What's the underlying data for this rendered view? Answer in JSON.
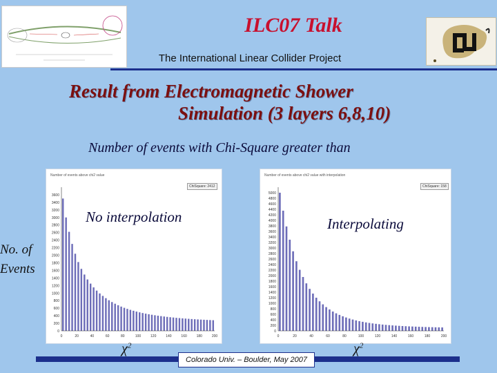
{
  "header": {
    "title": "ILC07 Talk",
    "subtitle": "The International Linear Collider Project"
  },
  "heading": {
    "line1": "Result from Electromagnetic Shower",
    "line2": "Simulation  (3 layers 6,8,10)"
  },
  "caption": "Number of events with Chi-Square greater than",
  "y_axis_label": [
    "No. of",
    "Events"
  ],
  "footer": "Colorado Univ. – Boulder, May  2007",
  "colors": {
    "background": "#9fc6ec",
    "title": "#c8102e",
    "heading": "#7b1010",
    "rule": "#1c2f8c",
    "bars": "#6d6db8"
  },
  "chart_data": [
    {
      "type": "bar",
      "panel_title": "Number of events above chi2 value",
      "stat": "ChiSquare: 2412",
      "annotation": "No interpolation",
      "xlabel_symbol": "χ",
      "xlabel_sup": "2",
      "xlim": [
        0,
        200
      ],
      "ylim": [
        0,
        3800
      ],
      "x_ticks": [
        "0",
        "20",
        "40",
        "60",
        "80",
        "100",
        "120",
        "140",
        "160",
        "180",
        "200"
      ],
      "y_ticks": [
        "0",
        "200",
        "400",
        "600",
        "800",
        "1000",
        "1200",
        "1400",
        "1600",
        "1800",
        "2000",
        "2200",
        "2400",
        "2600",
        "2800",
        "3000",
        "3200",
        "3400",
        "3600"
      ],
      "x": [
        2,
        6,
        10,
        14,
        18,
        22,
        26,
        30,
        34,
        38,
        42,
        46,
        50,
        54,
        58,
        62,
        66,
        70,
        74,
        78,
        82,
        86,
        90,
        94,
        98,
        102,
        106,
        110,
        114,
        118,
        122,
        126,
        130,
        134,
        138,
        142,
        146,
        150,
        154,
        158,
        162,
        166,
        170,
        174,
        178,
        182,
        186,
        190,
        194,
        198
      ],
      "values": [
        3500,
        3000,
        2620,
        2300,
        2040,
        1820,
        1640,
        1490,
        1360,
        1250,
        1150,
        1065,
        990,
        925,
        865,
        810,
        762,
        718,
        678,
        642,
        610,
        582,
        556,
        532,
        510,
        490,
        472,
        455,
        440,
        426,
        413,
        401,
        390,
        380,
        370,
        361,
        353,
        345,
        338,
        331,
        325,
        319,
        313,
        308,
        303,
        298,
        294,
        290,
        286,
        282
      ]
    },
    {
      "type": "bar",
      "panel_title": "Number of events above chi2 value with interpolation",
      "stat": "ChiSquare: 158",
      "annotation": "Interpolating",
      "xlabel_symbol": "χ",
      "xlabel_sup": "2",
      "xlim": [
        0,
        200
      ],
      "ylim": [
        0,
        5200
      ],
      "x_ticks": [
        "0",
        "20",
        "40",
        "60",
        "80",
        "100",
        "120",
        "140",
        "160",
        "180",
        "200"
      ],
      "y_ticks": [
        "0",
        "200",
        "400",
        "600",
        "800",
        "1000",
        "1200",
        "1400",
        "1600",
        "1800",
        "2000",
        "2200",
        "2400",
        "2600",
        "2800",
        "3000",
        "3200",
        "3400",
        "3600",
        "3800",
        "4000",
        "4200",
        "4400",
        "4600",
        "4800",
        "5000"
      ],
      "x": [
        2,
        6,
        10,
        14,
        18,
        22,
        26,
        30,
        34,
        38,
        42,
        46,
        50,
        54,
        58,
        62,
        66,
        70,
        74,
        78,
        82,
        86,
        90,
        94,
        98,
        102,
        106,
        110,
        114,
        118,
        122,
        126,
        130,
        134,
        138,
        142,
        146,
        150,
        154,
        158,
        162,
        166,
        170,
        174,
        178,
        182,
        186,
        190,
        194,
        198
      ],
      "values": [
        5000,
        4350,
        3780,
        3300,
        2880,
        2520,
        2210,
        1950,
        1720,
        1520,
        1350,
        1200,
        1070,
        960,
        860,
        775,
        700,
        635,
        578,
        528,
        484,
        445,
        410,
        379,
        352,
        328,
        306,
        287,
        270,
        255,
        241,
        228,
        217,
        207,
        198,
        190,
        182,
        175,
        169,
        163,
        158,
        153,
        148,
        144,
        140,
        136,
        133,
        130,
        127,
        124
      ]
    }
  ]
}
